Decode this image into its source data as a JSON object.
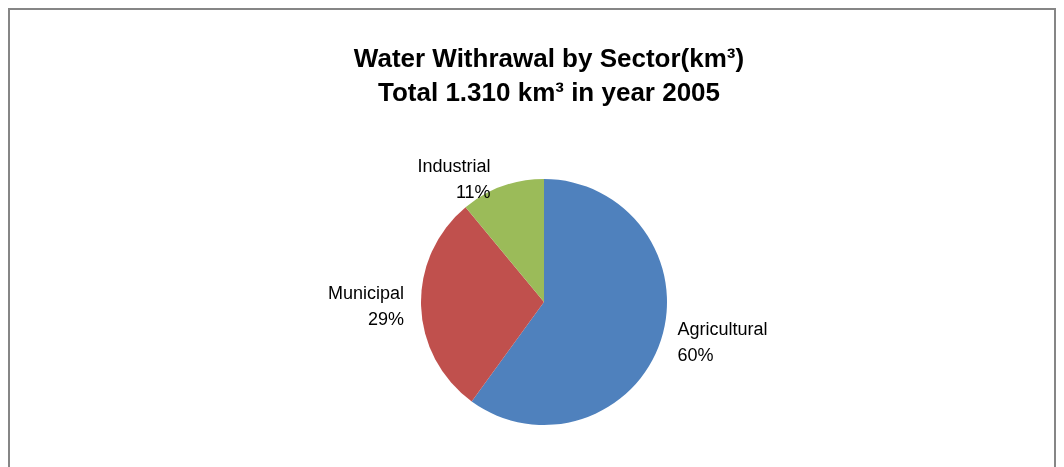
{
  "chart_data": {
    "type": "pie",
    "title": "Water Withrawal by Sector(km³)",
    "subtitle": "Total 1.310 km³ in year 2005",
    "categories": [
      "Agricultural",
      "Municipal",
      "Industrial"
    ],
    "values": [
      60,
      29,
      11
    ],
    "colors": [
      "#4f81bd",
      "#c0504d",
      "#9bbb59"
    ],
    "value_labels": [
      "60%",
      "29%",
      "11%"
    ],
    "legend": false
  }
}
